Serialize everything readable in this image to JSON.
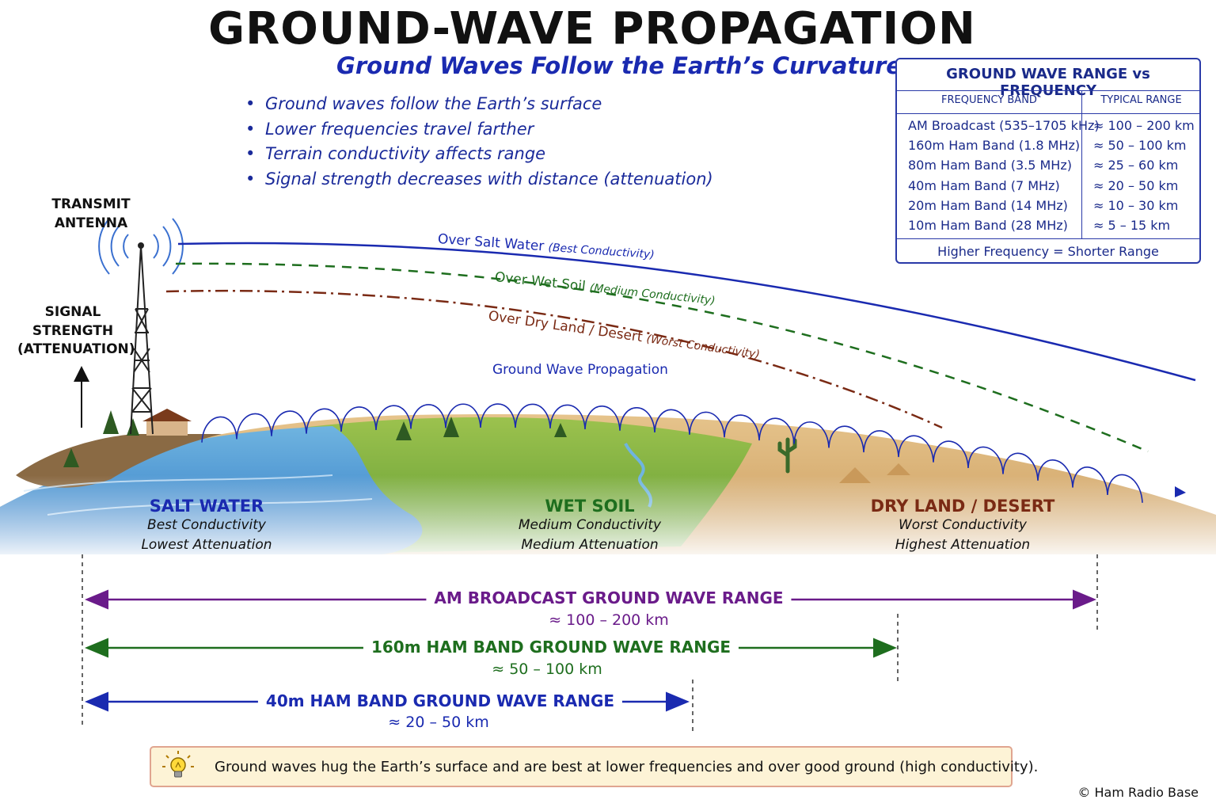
{
  "title": "GROUND-WAVE PROPAGATION",
  "subtitle": "Ground Waves Follow the Earth’s Curvature",
  "bullets": [
    "Ground waves follow the Earth’s surface",
    "Lower frequencies travel farther",
    "Terrain conductivity affects range",
    "Signal strength decreases with distance (attenuation)"
  ],
  "antenna_label": [
    "TRANSMIT",
    "ANTENNA"
  ],
  "signal_label": [
    "SIGNAL",
    "STRENGTH",
    "(ATTENUATION)"
  ],
  "waves": [
    {
      "label": "Over Salt Water",
      "note": "(Best Conductivity)",
      "color": "#1a2ab0"
    },
    {
      "label": "Over Wet Soil",
      "note": "(Medium Conductivity)",
      "color": "#1e6e1e"
    },
    {
      "label": "Over Dry Land / Desert",
      "note": "(Worst Conductivity)",
      "color": "#7a2a14"
    }
  ],
  "ground_wave_label": "Ground Wave Propagation",
  "zones": [
    {
      "name": "SALT WATER",
      "line1": "Best Conductivity",
      "line2": "Lowest Attenuation",
      "color": "#1a2ab0"
    },
    {
      "name": "WET SOIL",
      "line1": "Medium Conductivity",
      "line2": "Medium Attenuation",
      "color": "#1e6e1e"
    },
    {
      "name": "DRY LAND / DESERT",
      "line1": "Worst Conductivity",
      "line2": "Highest Attenuation",
      "color": "#7a2a14"
    }
  ],
  "freq_table": {
    "title": "GROUND WAVE RANGE vs FREQUENCY",
    "col_band": "FREQUENCY BAND",
    "col_range": "TYPICAL RANGE",
    "rows": [
      {
        "band": "AM Broadcast (535–1705 kHz)",
        "range": "≈ 100 – 200 km"
      },
      {
        "band": "160m Ham Band (1.8 MHz)",
        "range": "≈ 50 – 100 km"
      },
      {
        "band": "80m Ham Band (3.5 MHz)",
        "range": "≈ 25 – 60 km"
      },
      {
        "band": "40m Ham Band (7 MHz)",
        "range": "≈ 20 – 50 km"
      },
      {
        "band": "20m Ham Band (14 MHz)",
        "range": "≈ 10 – 30 km"
      },
      {
        "band": "10m Ham Band (28 MHz)",
        "range": "≈ 5 – 15 km"
      }
    ],
    "footer": "Higher Frequency = Shorter Range"
  },
  "ranges": [
    {
      "label": "AM BROADCAST GROUND WAVE RANGE",
      "value": "≈ 100 – 200 km",
      "color": "#6a1b8a"
    },
    {
      "label": "160m HAM BAND GROUND WAVE RANGE",
      "value": "≈ 50 – 100 km",
      "color": "#1e6e1e"
    },
    {
      "label": "40m HAM BAND GROUND WAVE RANGE",
      "value": "≈ 20 – 50 km",
      "color": "#1a2ab0"
    }
  ],
  "tip": "Ground waves hug the Earth’s surface and are best at lower frequencies and over good ground (high conductivity).",
  "tip_icon": "lightbulb-icon",
  "copyright": "© Ham Radio Base"
}
